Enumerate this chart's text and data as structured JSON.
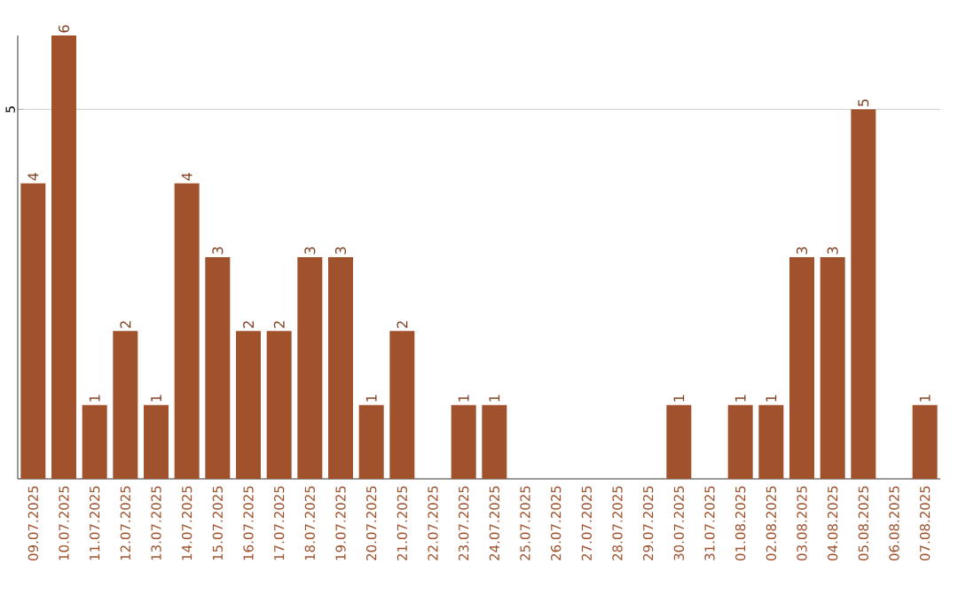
{
  "chart_data": {
    "type": "bar",
    "categories": [
      "09.07.2025",
      "10.07.2025",
      "11.07.2025",
      "12.07.2025",
      "13.07.2025",
      "14.07.2025",
      "15.07.2025",
      "16.07.2025",
      "17.07.2025",
      "18.07.2025",
      "19.07.2025",
      "20.07.2025",
      "21.07.2025",
      "22.07.2025",
      "23.07.2025",
      "24.07.2025",
      "25.07.2025",
      "26.07.2025",
      "27.07.2025",
      "28.07.2025",
      "29.07.2025",
      "30.07.2025",
      "31.07.2025",
      "01.08.2025",
      "02.08.2025",
      "03.08.2025",
      "04.08.2025",
      "05.08.2025",
      "06.08.2025",
      "07.08.2025"
    ],
    "values": [
      4,
      6,
      1,
      2,
      1,
      4,
      3,
      2,
      2,
      3,
      3,
      1,
      2,
      0,
      1,
      1,
      0,
      0,
      0,
      0,
      0,
      1,
      0,
      1,
      1,
      3,
      3,
      5,
      0,
      1
    ],
    "value_labels": [
      "4",
      "6",
      "1",
      "2",
      "1",
      "4",
      "3",
      "2",
      "2",
      "3",
      "3",
      "1",
      "2",
      null,
      "1",
      "1",
      null,
      null,
      null,
      null,
      null,
      "1",
      null,
      "1",
      "1",
      "3",
      "3",
      "5",
      null,
      "1"
    ],
    "color": "#a0522d",
    "ylim": [
      0,
      6
    ],
    "yticks": [
      5
    ],
    "grid": "y"
  }
}
